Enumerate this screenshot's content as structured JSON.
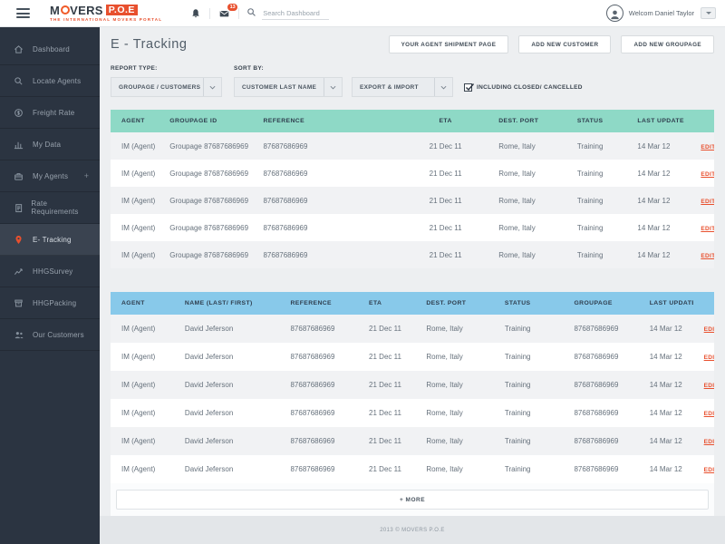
{
  "colors": {
    "accent": "#e8502e",
    "logo_red": "#e8432e",
    "teal_header": "#8ed9c6",
    "blue_header": "#88c9ea",
    "sidebar_bg": "#2b3441",
    "sidebar_active_bg": "#3a4350"
  },
  "header": {
    "brand_prefix": "M",
    "brand_mid": "VERS",
    "brand_suffix": "P.O.E",
    "tagline": "THE INTERNATIONAL MOVERS PORTAL",
    "message_badge_count": "13",
    "search_placeholder": "Search Dashboard",
    "user_greeting": "Welcom Daniel Taylor"
  },
  "sidebar": {
    "items": [
      {
        "label": "Dashboard",
        "icon": "home",
        "active": false
      },
      {
        "label": "Locate Agents",
        "icon": "search",
        "active": false
      },
      {
        "label": "Freight Rate",
        "icon": "coin",
        "active": false
      },
      {
        "label": "My Data",
        "icon": "bar-chart",
        "active": false
      },
      {
        "label": "My Agents",
        "icon": "briefcase",
        "active": false,
        "suffix": "+"
      },
      {
        "label": "Rate Requirements",
        "icon": "document",
        "active": false
      },
      {
        "label": "E- Tracking",
        "icon": "map-pin",
        "active": true
      },
      {
        "label": "HHGSurvey",
        "icon": "line-chart",
        "active": false
      },
      {
        "label": "HHGPacking",
        "icon": "box",
        "active": false
      },
      {
        "label": "Our Customers",
        "icon": "people",
        "active": false
      }
    ]
  },
  "page": {
    "title": "E - Tracking",
    "actions": [
      "YOUR AGENT SHIPMENT PAGE",
      "ADD NEW CUSTOMER",
      "ADD NEW GROUPAGE"
    ]
  },
  "filters": {
    "report_type_label": "REPORT TYPE:",
    "report_type_value": "GROUPAGE / CUSTOMERS",
    "sort_by_label": "SORT BY:",
    "sort_value_1": "CUSTOMER LAST NAME",
    "sort_value_2": "EXPORT & IMPORT",
    "checkbox_label": "INCLUDING CLOSED/ CANCELLED",
    "checkbox_checked": true
  },
  "groupage_table": {
    "columns": [
      "AGENT",
      "GROUPAGE ID",
      "REFERENCE",
      "ETA",
      "DEST. PORT",
      "STATUS",
      "LAST UPDATE",
      ""
    ],
    "fields": [
      "agent",
      "groupage_id",
      "reference",
      "eta",
      "dest_port",
      "status",
      "last_update"
    ],
    "edit_label": "EDIT",
    "rows": [
      {
        "agent": "IM (Agent)",
        "groupage_id": "Groupage 87687686969",
        "reference": "87687686969",
        "eta": "21 Dec 11",
        "dest_port": "Rome, Italy",
        "status": "Training",
        "last_update": "14 Mar 12"
      },
      {
        "agent": "IM (Agent)",
        "groupage_id": "Groupage 87687686969",
        "reference": "87687686969",
        "eta": "21 Dec 11",
        "dest_port": "Rome, Italy",
        "status": "Training",
        "last_update": "14 Mar 12"
      },
      {
        "agent": "IM (Agent)",
        "groupage_id": "Groupage 87687686969",
        "reference": "87687686969",
        "eta": "21 Dec 11",
        "dest_port": "Rome, Italy",
        "status": "Training",
        "last_update": "14 Mar 12"
      },
      {
        "agent": "IM (Agent)",
        "groupage_id": "Groupage 87687686969",
        "reference": "87687686969",
        "eta": "21 Dec 11",
        "dest_port": "Rome, Italy",
        "status": "Training",
        "last_update": "14 Mar 12"
      },
      {
        "agent": "IM (Agent)",
        "groupage_id": "Groupage 87687686969",
        "reference": "87687686969",
        "eta": "21 Dec 11",
        "dest_port": "Rome, Italy",
        "status": "Training",
        "last_update": "14 Mar 12"
      }
    ]
  },
  "customers_table": {
    "columns": [
      "AGENT",
      "NAME (LAST/ FIRST)",
      "REFERENCE",
      "ETA",
      "DEST. PORT",
      "STATUS",
      "GROUPAGE",
      "LAST UPDATE",
      ""
    ],
    "fields": [
      "agent",
      "name",
      "reference",
      "eta",
      "dest_port",
      "status",
      "groupage",
      "last_update"
    ],
    "edit_label": "EDIT",
    "rows": [
      {
        "agent": "IM (Agent)",
        "name": "David Jeferson",
        "reference": "87687686969",
        "eta": "21 Dec 11",
        "dest_port": "Rome, Italy",
        "status": "Training",
        "groupage": "87687686969",
        "last_update": "14 Mar 12"
      },
      {
        "agent": "IM (Agent)",
        "name": "David Jeferson",
        "reference": "87687686969",
        "eta": "21 Dec 11",
        "dest_port": "Rome, Italy",
        "status": "Training",
        "groupage": "87687686969",
        "last_update": "14 Mar 12"
      },
      {
        "agent": "IM (Agent)",
        "name": "David Jeferson",
        "reference": "87687686969",
        "eta": "21 Dec 11",
        "dest_port": "Rome, Italy",
        "status": "Training",
        "groupage": "87687686969",
        "last_update": "14 Mar 12"
      },
      {
        "agent": "IM (Agent)",
        "name": "David Jeferson",
        "reference": "87687686969",
        "eta": "21 Dec 11",
        "dest_port": "Rome, Italy",
        "status": "Training",
        "groupage": "87687686969",
        "last_update": "14 Mar 12"
      },
      {
        "agent": "IM (Agent)",
        "name": "David Jeferson",
        "reference": "87687686969",
        "eta": "21 Dec 11",
        "dest_port": "Rome, Italy",
        "status": "Training",
        "groupage": "87687686969",
        "last_update": "14 Mar 12"
      },
      {
        "agent": "IM (Agent)",
        "name": "David Jeferson",
        "reference": "87687686969",
        "eta": "21 Dec 11",
        "dest_port": "Rome, Italy",
        "status": "Training",
        "groupage": "87687686969",
        "last_update": "14 Mar 12"
      }
    ]
  },
  "more_button_label": "+ MORE",
  "footer_text": "2013 © MOVERS P.O.E"
}
